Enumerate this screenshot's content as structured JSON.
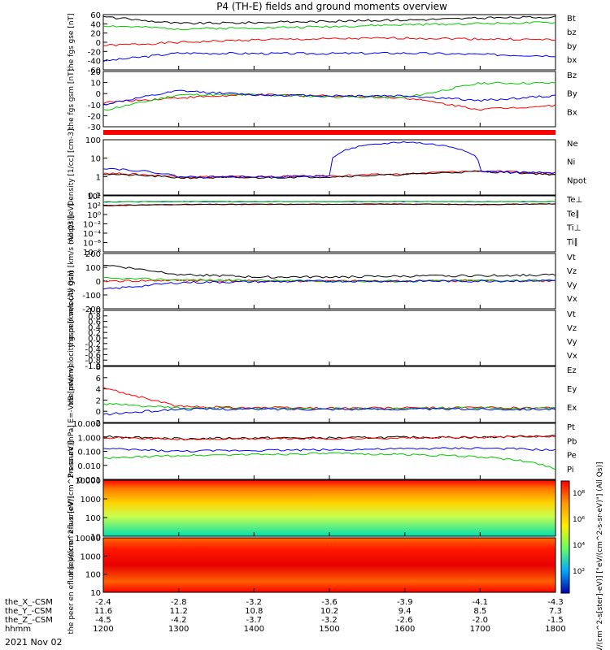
{
  "figure": {
    "title": "P4 (TH-E) fields and ground moments overview",
    "date": "2021 Nov 02",
    "colorbar_label": "[eV/(cm^2-s[ster]-eV)] [\"eV/(cm^2-s-sr-eV)\"] (All Qs)]",
    "colorbar_ticks": [
      "10⁸",
      "10⁶",
      "10⁴",
      "10²"
    ]
  },
  "ephemeris": {
    "rows": [
      {
        "label": "the_X_-CSM",
        "values": [
          "-2.4",
          "-2.8",
          "-3.2",
          "-3.6",
          "-3.9",
          "-4.1",
          "-4.3"
        ]
      },
      {
        "label": "the_Y_-CSM",
        "values": [
          "11.6",
          "11.2",
          "10.8",
          "10.2",
          "9.4",
          "8.5",
          "7.3"
        ]
      },
      {
        "label": "the_Z_-CSM",
        "values": [
          "-4.5",
          "-4.2",
          "-3.7",
          "-3.2",
          "-2.6",
          "-2.0",
          "-1.5"
        ]
      },
      {
        "label": "hhmm",
        "values": [
          "1200",
          "1300",
          "1400",
          "1500",
          "1600",
          "1700",
          "1800"
        ]
      }
    ]
  },
  "chart_data": [
    {
      "type": "line",
      "ylabel": "the fgs gse [nT]",
      "ylim": [
        -60,
        65
      ],
      "yticks": [
        "60",
        "40",
        "20",
        "0",
        "-20",
        "-40",
        "-60"
      ],
      "x": [
        "1200",
        "1300",
        "1400",
        "1500",
        "1600",
        "1700",
        "1800"
      ],
      "series": [
        {
          "name": "Bt",
          "color": "#000000",
          "values": [
            60,
            45,
            47,
            50,
            53,
            57,
            60
          ]
        },
        {
          "name": "bz",
          "color": "#ff0000",
          "values": [
            -5,
            2,
            8,
            10,
            12,
            10,
            8
          ]
        },
        {
          "name": "by",
          "color": "#00cc00",
          "values": [
            40,
            33,
            35,
            38,
            42,
            45,
            47
          ]
        },
        {
          "name": "bx",
          "color": "#0000ff",
          "values": [
            -40,
            -22,
            -23,
            -23,
            -22,
            -25,
            -28
          ]
        }
      ]
    },
    {
      "type": "line",
      "ylabel": "the fgs gsm [nT]",
      "ylim": [
        -35,
        22
      ],
      "yticks": [
        "20",
        "10",
        "0",
        "-10",
        "-20",
        "-30"
      ],
      "x": [
        "1200",
        "1300",
        "1400",
        "1500",
        "1600",
        "1700",
        "1800"
      ],
      "series": [
        {
          "name": "Bz",
          "color": "#ff0000",
          "values": [
            -10,
            -5,
            -2,
            -3,
            -5,
            -17,
            -13
          ]
        },
        {
          "name": "By",
          "color": "#00cc00",
          "values": [
            -18,
            -2,
            -2,
            -4,
            -5,
            10,
            10
          ]
        },
        {
          "name": "Bx",
          "color": "#0000ff",
          "values": [
            -12,
            2,
            -2,
            -3,
            -3,
            -8,
            -3
          ]
        }
      ]
    },
    {
      "type": "line",
      "ylabel": "Density [1/cc] [cm-3]",
      "yscale": "log",
      "ylim": [
        0.01,
        300
      ],
      "yticks": [
        "100",
        "10",
        "1",
        "0.1"
      ],
      "x": [
        "1200",
        "1300",
        "1400",
        "1500",
        "1600",
        "1700",
        "1800"
      ],
      "series": [
        {
          "name": "Ne",
          "color": "#ff0000",
          "values": [
            0.6,
            0.3,
            0.3,
            0.35,
            0.5,
            0.9,
            0.5
          ]
        },
        {
          "name": "Ni",
          "color": "#000000",
          "values": [
            0.5,
            0.25,
            0.25,
            0.3,
            0.45,
            0.8,
            0.45
          ]
        },
        {
          "name": "Npot",
          "color": "#0000ff",
          "values": [
            1.5,
            0.3,
            0.3,
            0.35,
            200,
            0.8,
            0.6
          ]
        }
      ]
    },
    {
      "type": "line",
      "ylabel": "moqt3 [eV]",
      "yscale": "log",
      "ylim": [
        1e-09,
        100000.0
      ],
      "yticks": [
        "10⁴",
        "10²",
        "10⁰",
        "10⁻²",
        "10⁻⁴",
        "10⁻⁶",
        "10⁻⁸"
      ],
      "x": [
        "1200",
        "1300",
        "1400",
        "1500",
        "1600",
        "1700",
        "1800"
      ],
      "series": [
        {
          "name": "Te⊥",
          "color": "#ff0000",
          "values": [
            300,
            600,
            700,
            700,
            800,
            600,
            900
          ]
        },
        {
          "name": "Te∥",
          "color": "#000000",
          "values": [
            400,
            700,
            800,
            800,
            900,
            700,
            1000
          ]
        },
        {
          "name": "Ti⊥",
          "color": "#0000ff",
          "values": [
            3000,
            3500,
            3500,
            3500,
            3500,
            3500,
            3500
          ]
        },
        {
          "name": "Ti∥",
          "color": "#00cc00",
          "values": [
            3200,
            3700,
            3700,
            3700,
            3700,
            3700,
            3700
          ]
        }
      ]
    },
    {
      "type": "line",
      "ylabel": "the peir velocity gsm [km/s (All Qs)]",
      "ylim": [
        -200,
        200
      ],
      "yticks": [
        "200",
        "100",
        "0",
        "-100",
        "-200"
      ],
      "x": [
        "1200",
        "1300",
        "1400",
        "1500",
        "1600",
        "1700",
        "1800"
      ],
      "series": [
        {
          "name": "Vt",
          "color": "#000000",
          "values": [
            120,
            50,
            30,
            30,
            35,
            40,
            45
          ]
        },
        {
          "name": "Vz",
          "color": "#ff0000",
          "values": [
            0,
            5,
            0,
            0,
            0,
            5,
            0
          ]
        },
        {
          "name": "Vy",
          "color": "#00cc00",
          "values": [
            20,
            10,
            5,
            0,
            0,
            5,
            5
          ]
        },
        {
          "name": "Vx",
          "color": "#0000ff",
          "values": [
            -60,
            -10,
            -5,
            0,
            0,
            0,
            5
          ]
        }
      ]
    },
    {
      "type": "line",
      "ylabel": "the peer velocity gsm [km/s (All Qs)]",
      "ylim": [
        -1.0,
        1.0
      ],
      "yticks": [
        "1.0",
        "0.8",
        "0.6",
        "0.4",
        "0.2",
        "0.0",
        "-0.2",
        "-0.4",
        "-0.6",
        "-0.8",
        "-1.0"
      ],
      "x": [],
      "series": [
        {
          "name": "Vt",
          "color": "#000000",
          "values": []
        },
        {
          "name": "Vz",
          "color": "#ff0000",
          "values": []
        },
        {
          "name": "Vy",
          "color": "#00cc00",
          "values": []
        },
        {
          "name": "Vx",
          "color": "#0000ff",
          "values": []
        }
      ]
    },
    {
      "type": "line",
      "ylabel": "E=-VxB [mV/m]",
      "ylim": [
        -2.5,
        8
      ],
      "yticks": [
        "8",
        "6",
        "4",
        "2",
        "0",
        "-2"
      ],
      "x": [
        "1200",
        "1300",
        "1400",
        "1500",
        "1600",
        "1700",
        "1800"
      ],
      "series": [
        {
          "name": "Ez",
          "color": "#ff0000",
          "values": [
            4,
            0.5,
            0.3,
            0.2,
            0.2,
            0.3,
            0.2
          ]
        },
        {
          "name": "Ey",
          "color": "#00cc00",
          "values": [
            1,
            0.2,
            0.1,
            0.1,
            0.1,
            0.2,
            0.1
          ]
        },
        {
          "name": "Ex",
          "color": "#0000ff",
          "values": [
            -1,
            0,
            0,
            0,
            0,
            0,
            0
          ]
        }
      ]
    },
    {
      "type": "line",
      "ylabel": "Pressure [nPa]",
      "yscale": "log",
      "ylim": [
        0.001,
        10
      ],
      "yticks": [
        "10.000",
        "1.000",
        "0.100",
        "0.010",
        "0.001"
      ],
      "x": [
        "1200",
        "1300",
        "1400",
        "1500",
        "1600",
        "1700",
        "1800"
      ],
      "series": [
        {
          "name": "Pt",
          "color": "#000000",
          "values": [
            1.2,
            0.8,
            0.9,
            0.9,
            1.0,
            1.0,
            1.3
          ]
        },
        {
          "name": "Pb",
          "color": "#ff0000",
          "values": [
            1.0,
            0.7,
            0.8,
            0.8,
            0.9,
            1.0,
            1.2
          ]
        },
        {
          "name": "Pe",
          "color": "#00cc00",
          "values": [
            0.03,
            0.05,
            0.06,
            0.07,
            0.06,
            0.04,
            0.005
          ]
        },
        {
          "name": "Pi",
          "color": "#0000ff",
          "values": [
            0.15,
            0.1,
            0.12,
            0.13,
            0.15,
            0.17,
            0.12
          ]
        }
      ]
    },
    {
      "type": "heatmap",
      "ylabel": "the peir en eflux [eV/(cm^2-s-sr-eV)]",
      "yscale": "log",
      "ylim": [
        5,
        30000
      ],
      "yticks": [
        "10000",
        "1000",
        "100",
        "10"
      ],
      "x": [
        "1200",
        "1300",
        "1400",
        "1500",
        "1600",
        "1700",
        "1800"
      ]
    },
    {
      "type": "heatmap",
      "ylabel": "the peer en eflux [eV/(cm^2-s-sr-eV)]",
      "yscale": "log",
      "ylim": [
        5,
        30000
      ],
      "yticks": [
        "10000",
        "1000",
        "100",
        "10"
      ],
      "x": [
        "1200",
        "1300",
        "1400",
        "1500",
        "1600",
        "1700",
        "1800"
      ]
    }
  ]
}
